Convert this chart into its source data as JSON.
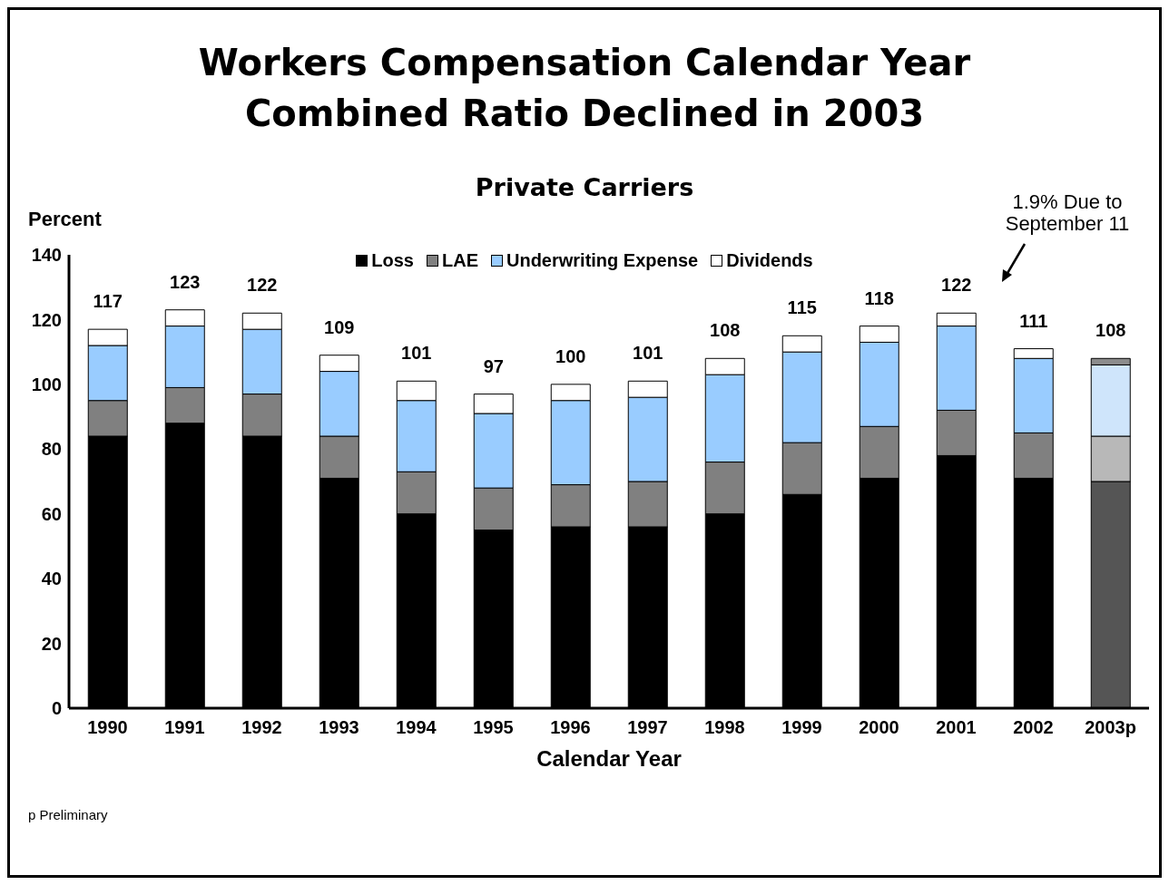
{
  "chart_data": {
    "type": "bar",
    "title": "Workers Compensation Calendar Year\nCombined Ratio Declined in 2003",
    "subtitle": "Private Carriers",
    "ylabel": "Percent",
    "xlabel": "Calendar Year",
    "categories": [
      "1990",
      "1991",
      "1992",
      "1993",
      "1994",
      "1995",
      "1996",
      "1997",
      "1998",
      "1999",
      "2000",
      "2001",
      "2002",
      "2003p"
    ],
    "stacked": true,
    "series": [
      {
        "name": "Loss",
        "color": "#000000",
        "colors": [
          "#000000",
          "#000000",
          "#000000",
          "#000000",
          "#000000",
          "#000000",
          "#000000",
          "#000000",
          "#000000",
          "#000000",
          "#000000",
          "#000000",
          "#000000",
          "#555555"
        ],
        "values": [
          84,
          88,
          84,
          71,
          60,
          55,
          56,
          56,
          60,
          66,
          71,
          78,
          71,
          70
        ]
      },
      {
        "name": "LAE",
        "color": "#808080",
        "colors": [
          "#808080",
          "#808080",
          "#808080",
          "#808080",
          "#808080",
          "#808080",
          "#808080",
          "#808080",
          "#808080",
          "#808080",
          "#808080",
          "#808080",
          "#808080",
          "#b8b8b8"
        ],
        "values": [
          11,
          11,
          13,
          13,
          13,
          13,
          13,
          14,
          16,
          16,
          16,
          14,
          14,
          14
        ]
      },
      {
        "name": "Underwriting Expense",
        "color": "#99ccff",
        "colors": [
          "#99ccff",
          "#99ccff",
          "#99ccff",
          "#99ccff",
          "#99ccff",
          "#99ccff",
          "#99ccff",
          "#99ccff",
          "#99ccff",
          "#99ccff",
          "#99ccff",
          "#99ccff",
          "#99ccff",
          "#cfe5fb"
        ],
        "values": [
          17,
          19,
          20,
          20,
          22,
          23,
          26,
          26,
          27,
          28,
          26,
          26,
          23,
          22
        ]
      },
      {
        "name": "Dividends",
        "color": "#ffffff",
        "colors": [
          "#ffffff",
          "#ffffff",
          "#ffffff",
          "#ffffff",
          "#ffffff",
          "#ffffff",
          "#ffffff",
          "#ffffff",
          "#ffffff",
          "#ffffff",
          "#ffffff",
          "#ffffff",
          "#ffffff",
          "#8c8c8c"
        ],
        "values": [
          5,
          5,
          5,
          5,
          6,
          6,
          5,
          5,
          5,
          5,
          5,
          4,
          3,
          2
        ]
      }
    ],
    "totals": [
      "117",
      "123",
      "122",
      "109",
      "101",
      "97",
      "100",
      "101",
      "108",
      "115",
      "118",
      "122",
      "111",
      "108"
    ],
    "ylim": [
      0,
      140
    ],
    "yticks": [
      0,
      20,
      40,
      60,
      80,
      100,
      120,
      140
    ],
    "grid": false,
    "legend": "top",
    "annotations": [
      "1.9% Due to September 11",
      "p Preliminary"
    ]
  }
}
